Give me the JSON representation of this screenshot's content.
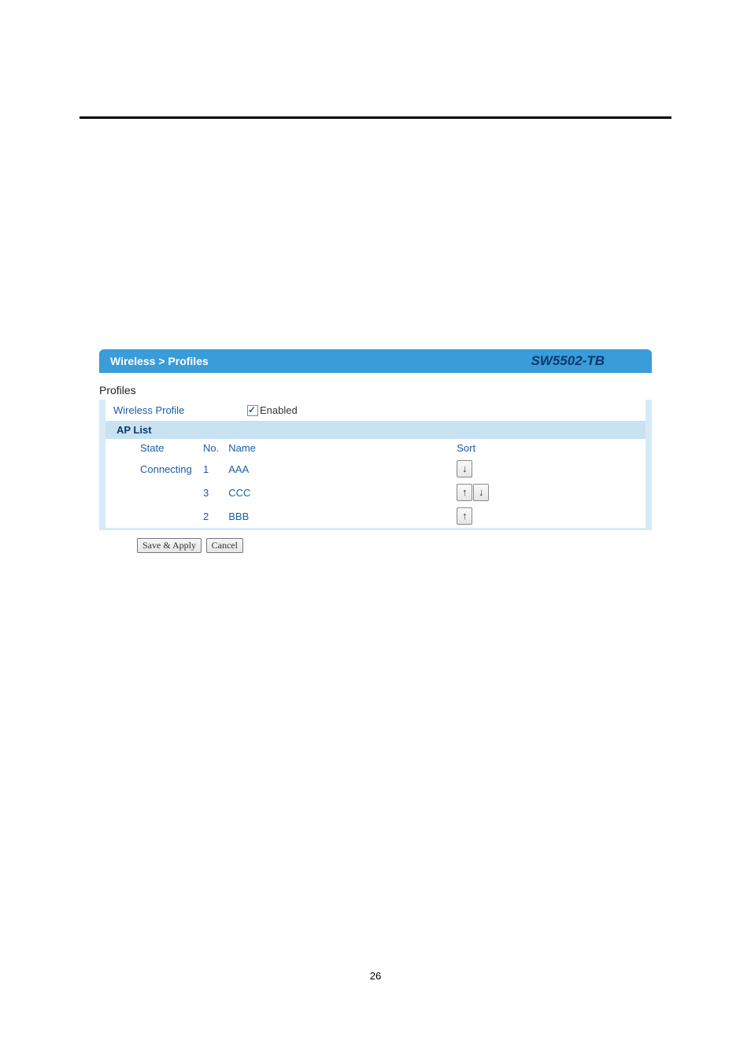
{
  "header": {
    "breadcrumb": "Wireless > Profiles",
    "model": "SW5502-TB"
  },
  "section_title": "Profiles",
  "wireless_profile": {
    "label": "Wireless Profile",
    "enabled_label": "Enabled",
    "enabled_checked": true
  },
  "ap_list": {
    "title": "AP List",
    "columns": {
      "state": "State",
      "no": "No.",
      "name": "Name",
      "sort": "Sort"
    },
    "rows": [
      {
        "state": "Connecting",
        "no": "1",
        "name": "AAA",
        "up": false,
        "down": true
      },
      {
        "state": "",
        "no": "3",
        "name": "CCC",
        "up": true,
        "down": true
      },
      {
        "state": "",
        "no": "2",
        "name": "BBB",
        "up": true,
        "down": false
      }
    ]
  },
  "buttons": {
    "save_apply": "Save & Apply",
    "cancel": "Cancel"
  },
  "icons": {
    "arrow_up": "↑",
    "arrow_down": "↓"
  },
  "page_number": "26",
  "colors": {
    "header_bg": "#3a9cd8",
    "ap_list_bg": "#c8e2f2",
    "border_light": "#d7ebf7",
    "link_blue": "#1a5ca8",
    "model_dark": "#0a3a6b"
  }
}
